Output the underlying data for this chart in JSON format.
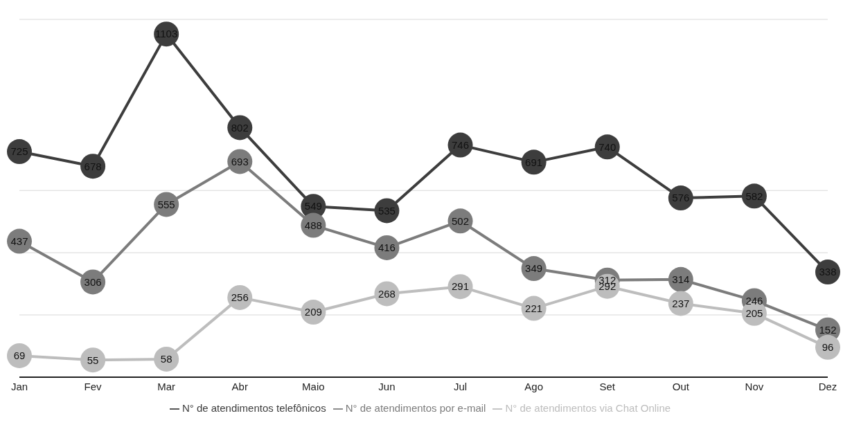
{
  "chart_data": {
    "type": "line",
    "categories": [
      "Jan",
      "Fev",
      "Mar",
      "Abr",
      "Maio",
      "Jun",
      "Jul",
      "Ago",
      "Set",
      "Out",
      "Nov",
      "Dez"
    ],
    "series": [
      {
        "name": "N° de atendimentos telefônicos",
        "color": "#3d3d3d",
        "values": [
          725,
          678,
          1103,
          802,
          549,
          535,
          746,
          691,
          740,
          576,
          582,
          338
        ]
      },
      {
        "name": "N° de atendimentos por e-mail",
        "color": "#7c7c7c",
        "values": [
          437,
          306,
          555,
          693,
          488,
          416,
          502,
          349,
          312,
          314,
          246,
          152
        ]
      },
      {
        "name": "N° de atendimentos via Chat Online",
        "color": "#bdbdbd",
        "values": [
          69,
          55,
          58,
          256,
          209,
          268,
          291,
          221,
          292,
          237,
          205,
          96
        ]
      }
    ],
    "ylim": [
      0,
      1150
    ],
    "yticks": [
      {
        "value": 200,
        "label": null
      },
      {
        "value": 400,
        "label": null
      },
      {
        "value": 600,
        "label": null
      }
    ],
    "tick_labels": "x",
    "grid": "y",
    "legend": "bottom",
    "marker": "circle",
    "line_style": "solid",
    "data_labels": true
  }
}
